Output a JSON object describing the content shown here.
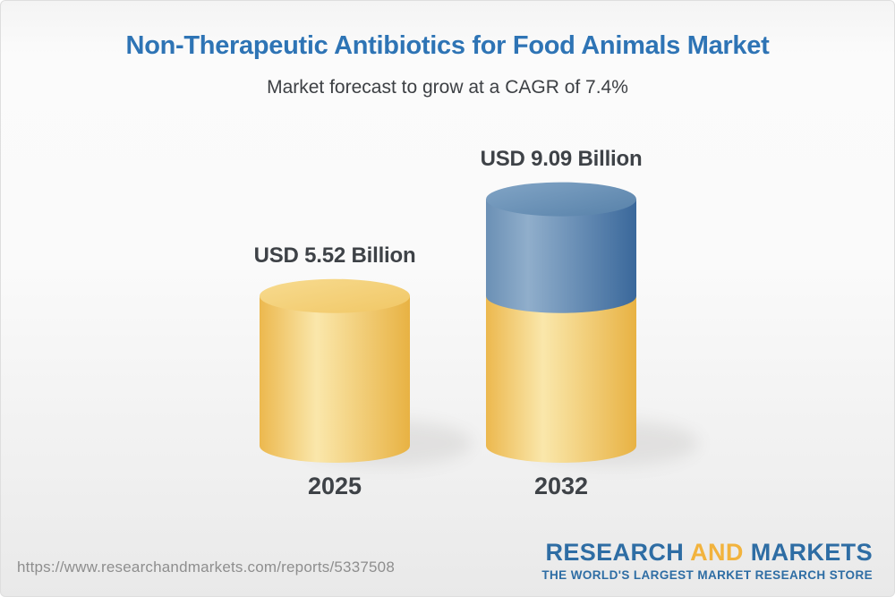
{
  "header": {
    "title": "Non-Therapeutic Antibiotics for Food Animals Market",
    "subtitle": "Market forecast to grow at a CAGR of 7.4%"
  },
  "chart_data": {
    "type": "bar",
    "title": "Non-Therapeutic Antibiotics for Food Animals Market",
    "subtitle": "Market forecast to grow at a CAGR of 7.4%",
    "unit": "USD Billion",
    "cagr_percent": 7.4,
    "categories": [
      "2025",
      "2032"
    ],
    "values": [
      5.52,
      9.09
    ],
    "ylim": [
      0,
      9.09
    ],
    "grid": false,
    "legend": false,
    "bars": [
      {
        "category": "2025",
        "label": "USD 5.52 Billion",
        "total": 5.52,
        "segments": [
          {
            "value": 5.52,
            "color": "gold"
          }
        ]
      },
      {
        "category": "2032",
        "label": "USD 9.09 Billion",
        "total": 9.09,
        "segments": [
          {
            "value": 5.52,
            "color": "gold"
          },
          {
            "value": 3.57,
            "color": "blue"
          }
        ]
      }
    ]
  },
  "colors": {
    "title_blue": "#2E74B5",
    "text_dark": "#3E4247",
    "gold_edge": "#ECB84E",
    "gold_highlight": "#FAE7AB",
    "gold_shadow": "#E8B243",
    "blue_edge": "#6B90B5",
    "blue_highlight": "#90AECB",
    "blue_shadow": "#3A689B",
    "logo_blue": "#2E6DA4",
    "logo_gold": "#F2B33D",
    "url_gray": "#8E8E8E"
  },
  "footer": {
    "url": "https://www.researchandmarkets.com/reports/5337508",
    "logo": {
      "word1": "RESEARCH",
      "word2": "AND",
      "word3": "MARKETS",
      "tagline": "THE WORLD'S LARGEST MARKET RESEARCH STORE"
    }
  }
}
